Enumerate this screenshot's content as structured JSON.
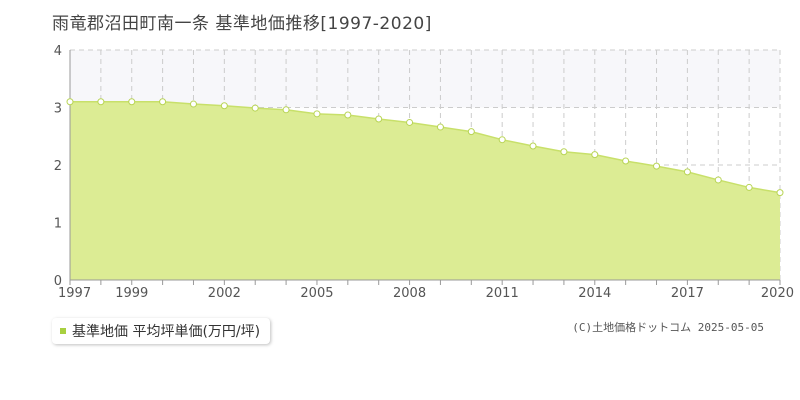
{
  "title": "雨竜郡沼田町南一条 基準地価推移[1997-2020]",
  "legend": {
    "label": "基準地価 平均坪単価(万円/坪)"
  },
  "credit": "(C)土地価格ドットコム 2025-05-05",
  "colors": {
    "area_fill": "#dcec94",
    "line": "#c8e06a",
    "marker_fill": "#ffffff",
    "marker_stroke": "#b8d455",
    "legend_swatch": "#a8d040",
    "grid": "#cccccc",
    "axis": "#999999",
    "upper_band": "#f7f7fa"
  },
  "chart_data": {
    "type": "area",
    "title": "雨竜郡沼田町南一条 基準地価推移[1997-2020]",
    "xlabel": "",
    "ylabel": "",
    "ylim": [
      0,
      4
    ],
    "yticks": [
      "0",
      "1",
      "2",
      "3",
      "4"
    ],
    "xlim": [
      1997,
      2020
    ],
    "xtick_labels": [
      "1997",
      "1999",
      "2002",
      "2005",
      "2008",
      "2011",
      "2014",
      "2017",
      "2020"
    ],
    "grid": true,
    "legend_position": "bottom-left",
    "series": [
      {
        "name": "基準地価 平均坪単価(万円/坪)",
        "x": [
          1997,
          1998,
          1999,
          2000,
          2001,
          2002,
          2003,
          2004,
          2005,
          2006,
          2007,
          2008,
          2009,
          2010,
          2011,
          2012,
          2013,
          2014,
          2015,
          2016,
          2017,
          2018,
          2019,
          2020
        ],
        "values": [
          3.1,
          3.1,
          3.1,
          3.1,
          3.06,
          3.03,
          2.99,
          2.96,
          2.89,
          2.87,
          2.8,
          2.74,
          2.66,
          2.58,
          2.44,
          2.33,
          2.23,
          2.18,
          2.07,
          1.98,
          1.88,
          1.74,
          1.61,
          1.52
        ]
      }
    ]
  }
}
